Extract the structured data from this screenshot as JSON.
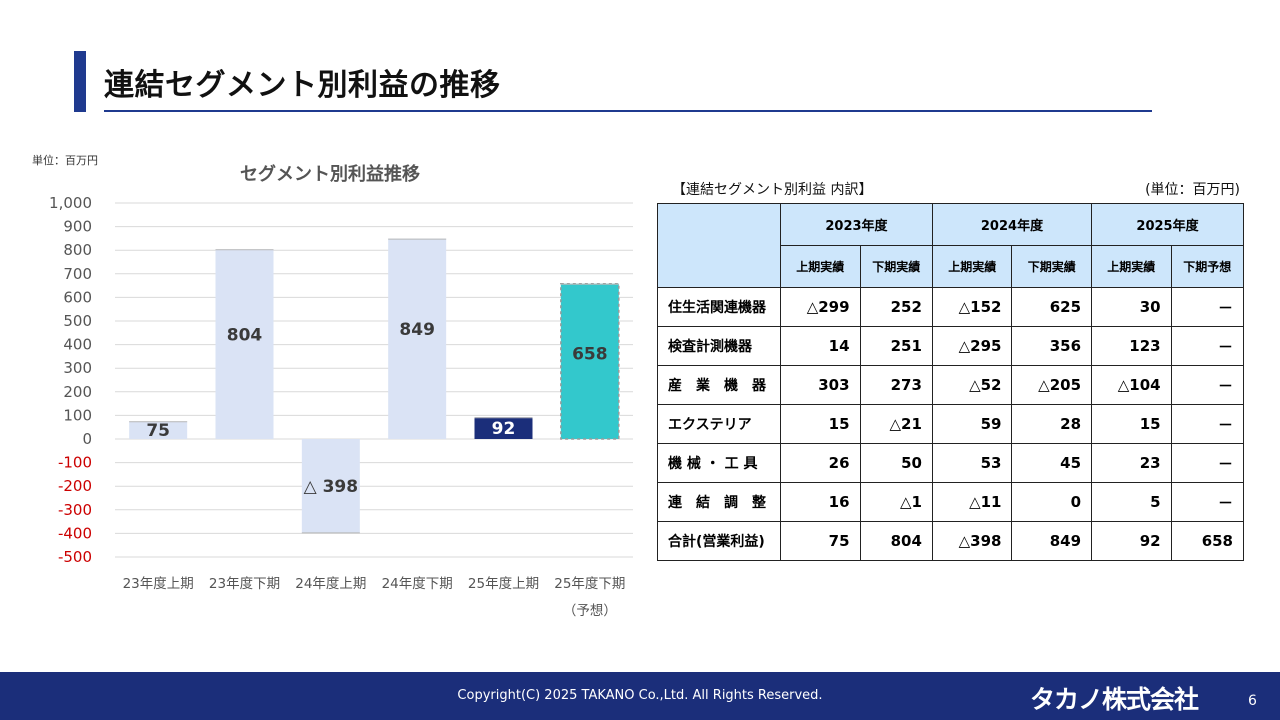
{
  "header": {
    "title": "連結セグメント別利益の推移"
  },
  "chart": {
    "unit": "単位：百万円",
    "title": "セグメント別利益推移"
  },
  "chart_data": {
    "type": "bar",
    "title": "セグメント別利益推移",
    "categories": [
      "23年度上期",
      "23年度下期",
      "24年度上期",
      "24年度下期",
      "25年度上期",
      "25年度下期"
    ],
    "category_sublabels": [
      "",
      "",
      "",
      "",
      "",
      "（予想）"
    ],
    "values": [
      75,
      804,
      -398,
      849,
      92,
      658
    ],
    "data_labels": [
      "75",
      "804",
      "△ 398",
      "849",
      "92",
      "658"
    ],
    "yticks": [
      "1,000",
      "900",
      "800",
      "700",
      "600",
      "500",
      "400",
      "300",
      "200",
      "100",
      "0",
      "-100",
      "-200",
      "-300",
      "-400",
      "-500"
    ],
    "ylim": [
      -500,
      1000
    ],
    "grid": true,
    "colors": {
      "default_bar": "#dae3f5",
      "current_bar": "#1b2e7a",
      "forecast_bar": "#33c8cc",
      "negative_tick": "#cc0000",
      "positive_tick": "#555555"
    }
  },
  "table": {
    "caption": "【連結セグメント別利益 内訳】",
    "unit": "(単位：百万円)",
    "years": [
      "2023年度",
      "2024年度",
      "2025年度"
    ],
    "subheaders": [
      "上期実績",
      "下期実績",
      "上期実績",
      "下期実績",
      "上期実績",
      "下期予想"
    ],
    "rows": [
      {
        "label": "住生活関連機器",
        "values": [
          "△299",
          "252",
          "△152",
          "625",
          "30",
          "－"
        ]
      },
      {
        "label": "検査計測機器",
        "values": [
          "14",
          "251",
          "△295",
          "356",
          "123",
          "－"
        ]
      },
      {
        "label": "産　業　機　器",
        "values": [
          "303",
          "273",
          "△52",
          "△205",
          "△104",
          "－"
        ]
      },
      {
        "label": "エクステリア",
        "values": [
          "15",
          "△21",
          "59",
          "28",
          "15",
          "－"
        ]
      },
      {
        "label": "機 械 ・ 工 具",
        "values": [
          "26",
          "50",
          "53",
          "45",
          "23",
          "－"
        ]
      },
      {
        "label": "連　結　調　整",
        "values": [
          "16",
          "△1",
          "△11",
          "0",
          "5",
          "－"
        ]
      },
      {
        "label": "合計(営業利益)",
        "values": [
          "75",
          "804",
          "△398",
          "849",
          "92",
          "658"
        ]
      }
    ]
  },
  "footer": {
    "copyright": "Copyright(C) 2025 TAKANO Co.,Ltd. All Rights Reserved.",
    "logo_text": "タカノ株式会社",
    "page_number": "6"
  }
}
